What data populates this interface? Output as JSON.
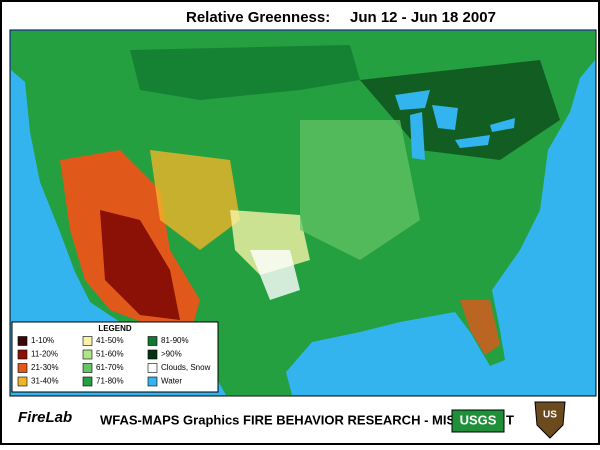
{
  "header": {
    "title": "Relative Greenness:",
    "date_range": "Jun 12 - Jun 18 2007"
  },
  "legend": {
    "title": "LEGEND",
    "items": [
      {
        "label": "1-10%",
        "color": "#3a0808"
      },
      {
        "label": "11-20%",
        "color": "#8b1005"
      },
      {
        "label": "21-30%",
        "color": "#e0581a"
      },
      {
        "label": "31-40%",
        "color": "#f0b428"
      },
      {
        "label": "41-50%",
        "color": "#f6f2a8"
      },
      {
        "label": "51-60%",
        "color": "#b0e48c"
      },
      {
        "label": "61-70%",
        "color": "#66c466"
      },
      {
        "label": "71-80%",
        "color": "#24a040"
      },
      {
        "label": "81-90%",
        "color": "#11792f"
      },
      {
        "label": ">90%",
        "color": "#06320f"
      },
      {
        "label": "Clouds, Snow",
        "color": "#ffffff"
      },
      {
        "label": "Water",
        "color": "#33b4ee"
      }
    ]
  },
  "footer": {
    "logo": "FireLab",
    "text": "WFAS-MAPS Graphics  FIRE BEHAVIOR RESEARCH - MISS",
    "usgs": "USGS",
    "trail": "T",
    "shield": "US"
  }
}
